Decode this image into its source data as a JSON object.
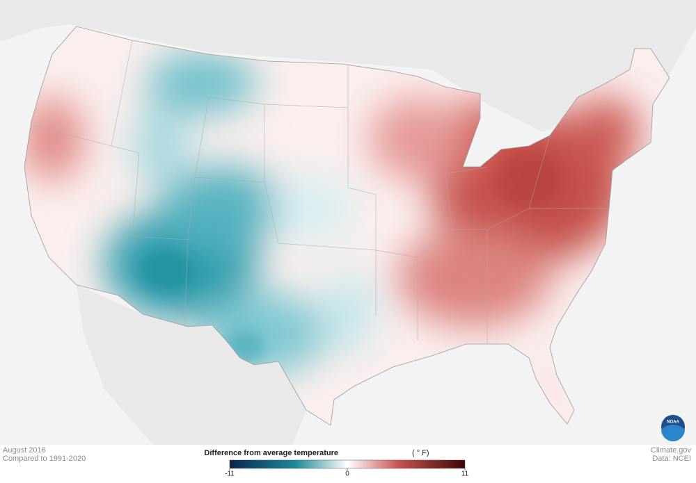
{
  "header": {
    "period": "August 2016",
    "baseline": "Compared to 1991-2020"
  },
  "legend": {
    "title": "Difference from average temperature",
    "unit": "( ° F)",
    "range": [
      -11,
      11
    ],
    "ticks": [
      -11,
      0,
      11
    ]
  },
  "credits": {
    "site": "Climate.gov",
    "source": "Data: NCEI",
    "logo": "NOAA"
  }
}
